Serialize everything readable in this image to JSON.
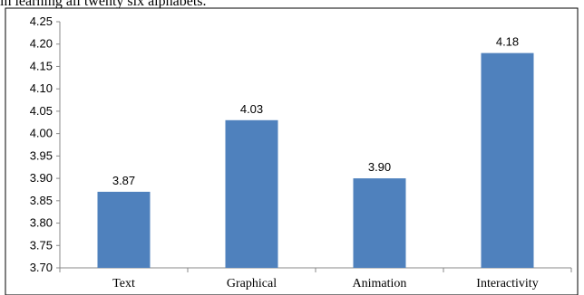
{
  "caption_fragment": "in learning all twenty six alphabets.",
  "chart_data": {
    "type": "bar",
    "categories": [
      "Text",
      "Graphical",
      "Animation",
      "Interactivity"
    ],
    "values": [
      3.87,
      4.03,
      3.9,
      4.18
    ],
    "value_labels": [
      "3.87",
      "4.03",
      "3.90",
      "4.18"
    ],
    "title": "",
    "xlabel": "",
    "ylabel": "",
    "ylim": [
      3.7,
      4.25
    ],
    "yticks": [
      "3.70",
      "3.75",
      "3.80",
      "3.85",
      "3.90",
      "3.95",
      "4.00",
      "4.05",
      "4.10",
      "4.15",
      "4.20",
      "4.25"
    ],
    "grid": false,
    "legend": "none",
    "bar_color": "#4F81BD"
  }
}
